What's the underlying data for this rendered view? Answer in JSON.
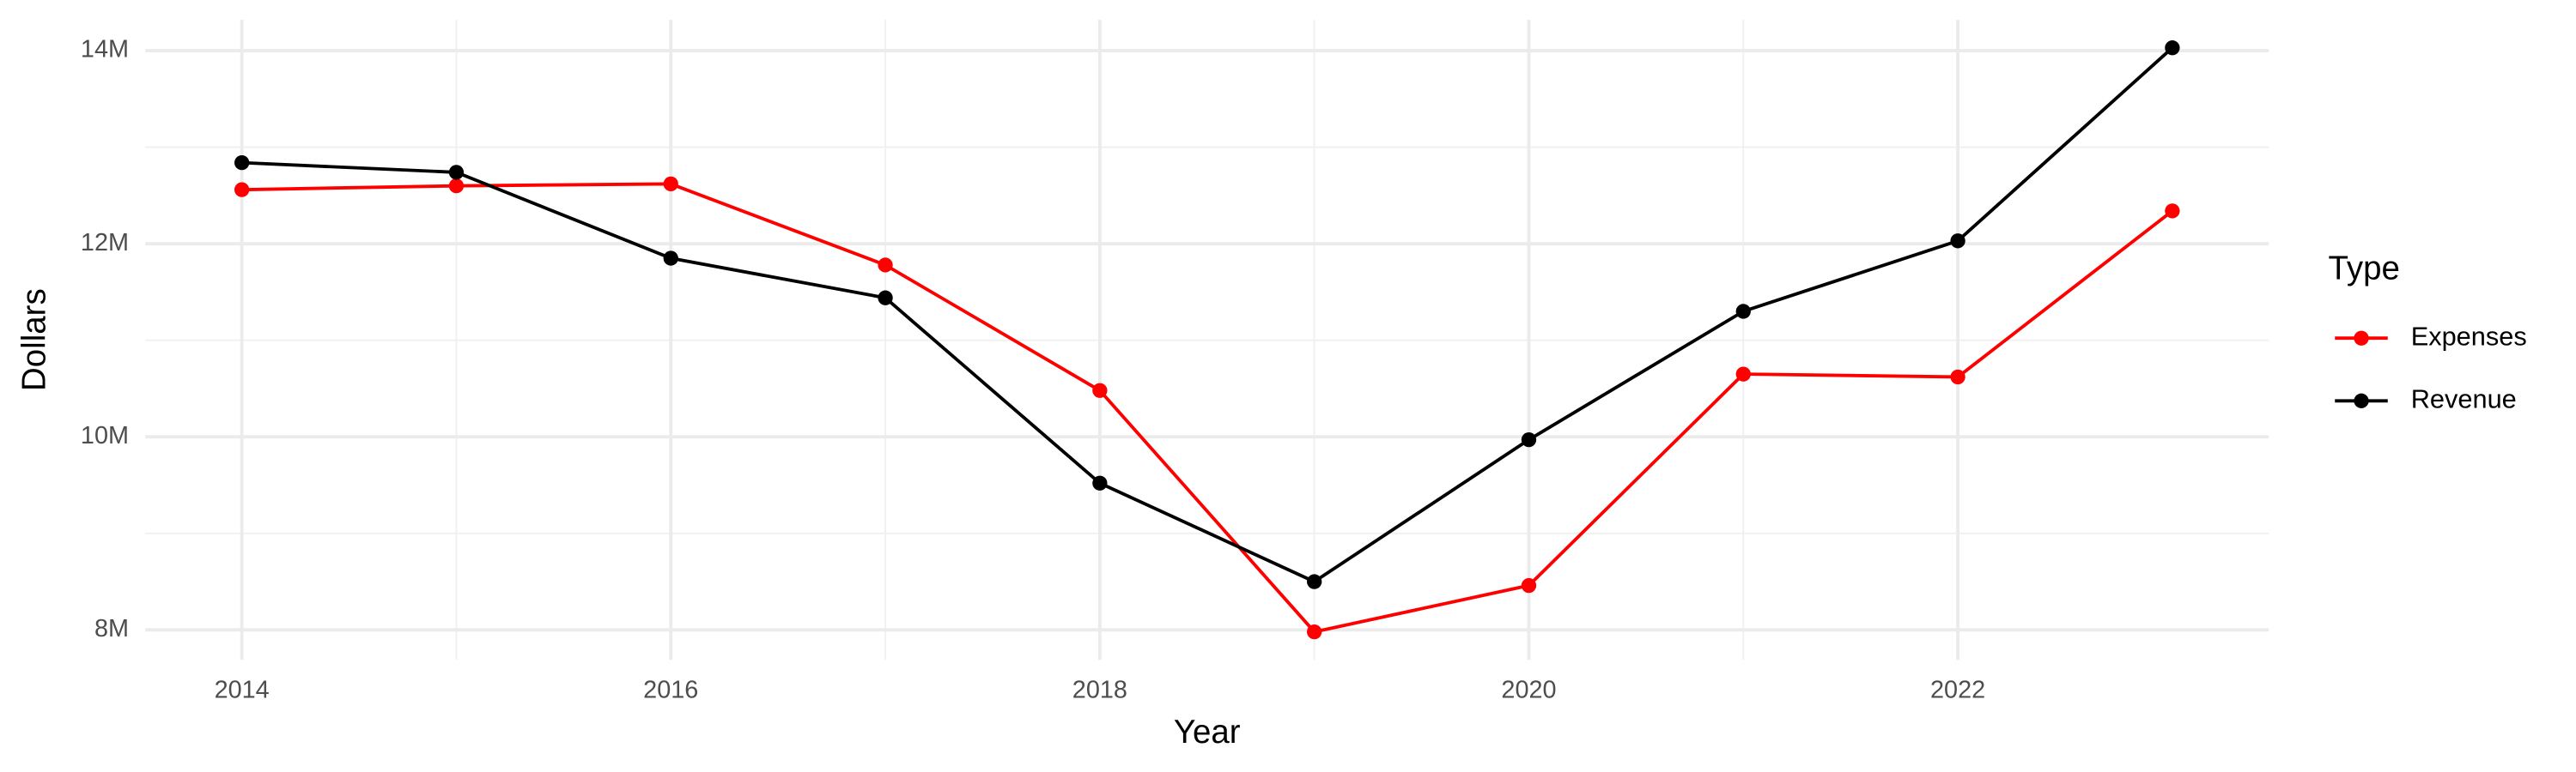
{
  "chart_data": {
    "type": "line",
    "x_label": "Year",
    "y_label": "Dollars",
    "x": [
      2014,
      2015,
      2016,
      2017,
      2018,
      2019,
      2020,
      2021,
      2022,
      2023
    ],
    "series": [
      {
        "name": "Expenses",
        "color": "#ff0000",
        "values": [
          12560000,
          12600000,
          12620000,
          11780000,
          10480000,
          7980000,
          8460000,
          10650000,
          10620000,
          12340000
        ]
      },
      {
        "name": "Revenue",
        "color": "#000000",
        "values": [
          12840000,
          12740000,
          11850000,
          11440000,
          9520000,
          8500000,
          9970000,
          11300000,
          12030000,
          14030000
        ]
      }
    ],
    "xlim": [
      2013.55,
      2023.45
    ],
    "xticks": [
      2014,
      2016,
      2018,
      2020,
      2022
    ],
    "ylim": [
      7690000,
      14320000
    ],
    "yticks": [
      {
        "value": 8000000,
        "label": "8M"
      },
      {
        "value": 10000000,
        "label": "10M"
      },
      {
        "value": 12000000,
        "label": "12M"
      },
      {
        "value": 14000000,
        "label": "14M"
      }
    ],
    "grid": true,
    "legend_title": "Type",
    "legend_position": "right"
  }
}
